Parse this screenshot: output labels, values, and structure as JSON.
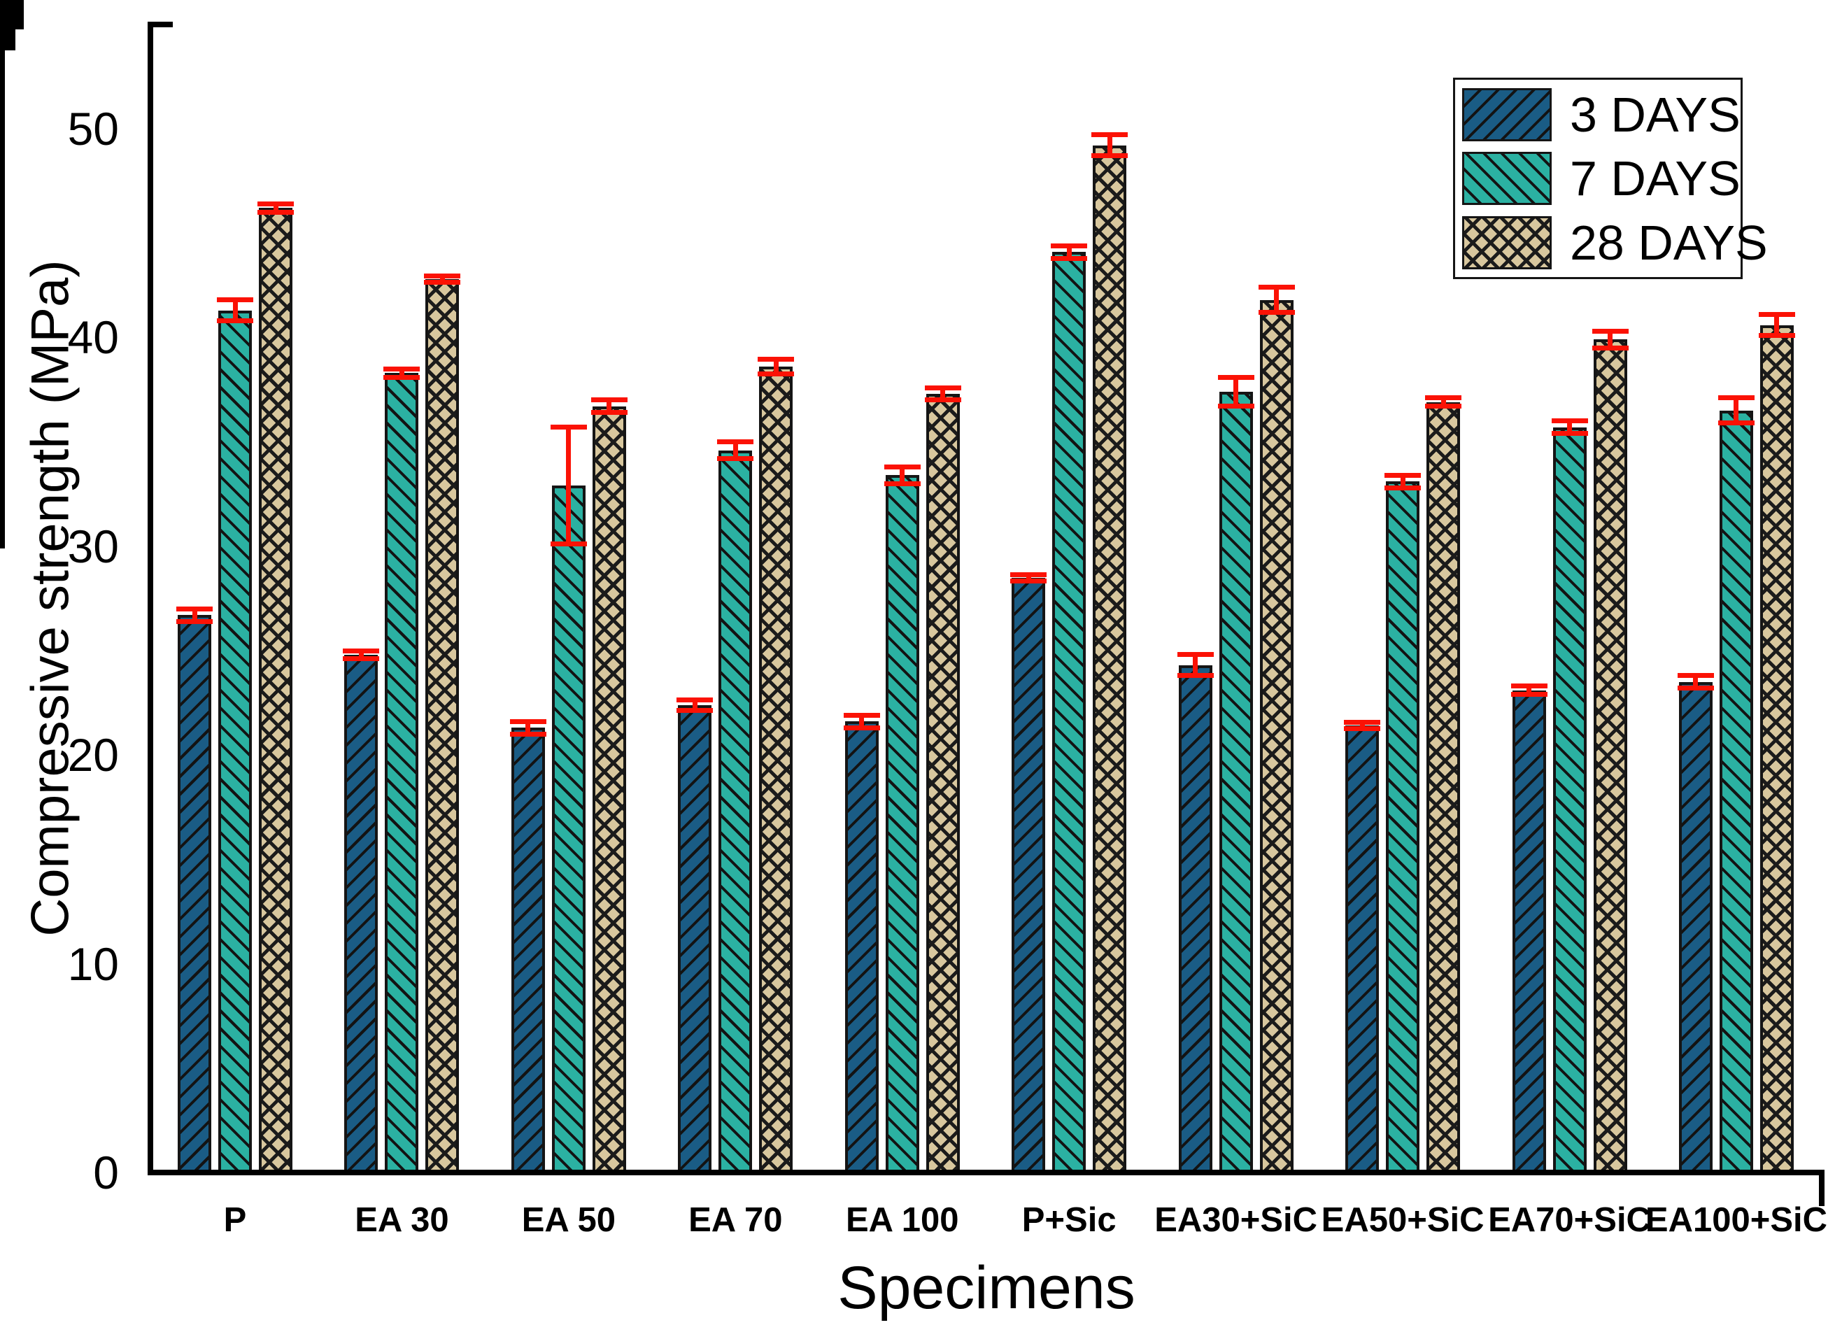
{
  "chart_data": {
    "type": "bar",
    "title": "",
    "xlabel": "Specimens",
    "ylabel": "Compressive strength (MPa)",
    "categories": [
      "P",
      "EA 30",
      "EA 50",
      "EA 70",
      "EA 100",
      "P+Sic",
      "EA30+SiC",
      "EA50+SiC",
      "EA70+SiC",
      "EA100+SiC"
    ],
    "series": [
      {
        "name": "3 DAYS",
        "color": "#1a5c85",
        "hatch": "/",
        "values": [
          26.7,
          24.8,
          21.3,
          22.4,
          21.6,
          28.5,
          24.3,
          21.4,
          23.1,
          23.5
        ],
        "errors": [
          0.3,
          0.2,
          0.3,
          0.25,
          0.3,
          0.15,
          0.5,
          0.15,
          0.2,
          0.3
        ]
      },
      {
        "name": "7 DAYS",
        "color": "#2bb1a2",
        "hatch": "\\",
        "values": [
          41.3,
          38.3,
          32.9,
          34.6,
          33.4,
          44.1,
          37.4,
          33.1,
          35.7,
          36.5
        ],
        "errors": [
          0.5,
          0.2,
          2.8,
          0.4,
          0.4,
          0.3,
          0.7,
          0.3,
          0.3,
          0.6
        ]
      },
      {
        "name": "28 DAYS",
        "color": "#d8c79e",
        "hatch": "x",
        "values": [
          46.2,
          42.8,
          36.7,
          38.6,
          37.3,
          49.2,
          41.8,
          36.9,
          39.9,
          40.6
        ],
        "errors": [
          0.2,
          0.15,
          0.3,
          0.35,
          0.3,
          0.5,
          0.6,
          0.2,
          0.4,
          0.5
        ]
      }
    ],
    "ylim": [
      0,
      55
    ],
    "yticks_major": [
      0,
      10,
      20,
      30,
      40,
      50
    ],
    "yticks_minor": [
      5,
      15,
      25,
      35,
      45
    ],
    "grid": false,
    "legend_position": "top-right",
    "error_bar_color": "#fb1205",
    "axis_color": "#000000"
  }
}
